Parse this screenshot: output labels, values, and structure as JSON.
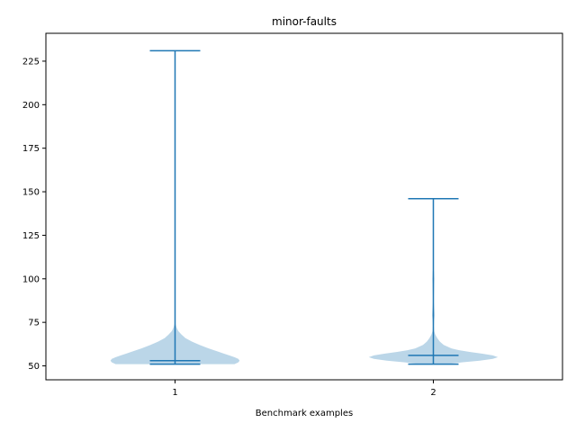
{
  "chart_data": {
    "type": "violin",
    "title": "minor-faults",
    "xlabel": "Benchmark examples",
    "ylabel": "",
    "categories": [
      "1",
      "2"
    ],
    "ylim": [
      42,
      241
    ],
    "xlim": [
      0.5,
      2.5
    ],
    "yticks": [
      50,
      75,
      100,
      125,
      150,
      175,
      200,
      225
    ],
    "grid": false,
    "colors": {
      "body": "#1f77b4",
      "body_opacity": 0.3,
      "lines": "#1f77b4"
    },
    "violins": [
      {
        "category": "1",
        "min": 51,
        "max": 231,
        "median": 53,
        "density": [
          [
            51,
            0.46
          ],
          [
            52,
            0.49
          ],
          [
            53,
            0.5
          ],
          [
            54,
            0.49
          ],
          [
            55,
            0.46
          ],
          [
            56,
            0.42
          ],
          [
            57,
            0.38
          ],
          [
            58,
            0.34
          ],
          [
            60,
            0.26
          ],
          [
            62,
            0.19
          ],
          [
            64,
            0.13
          ],
          [
            66,
            0.08
          ],
          [
            68,
            0.05
          ],
          [
            70,
            0.025
          ],
          [
            72,
            0.012
          ],
          [
            74,
            0.004
          ],
          [
            75,
            0.0
          ]
        ]
      },
      {
        "category": "2",
        "min": 51,
        "max": 146,
        "median": 56,
        "density": [
          [
            51,
            0.1
          ],
          [
            52,
            0.22
          ],
          [
            53,
            0.36
          ],
          [
            54,
            0.46
          ],
          [
            55,
            0.5
          ],
          [
            56,
            0.46
          ],
          [
            57,
            0.38
          ],
          [
            58,
            0.28
          ],
          [
            59,
            0.2
          ],
          [
            60,
            0.14
          ],
          [
            62,
            0.08
          ],
          [
            64,
            0.05
          ],
          [
            66,
            0.03
          ],
          [
            68,
            0.015
          ],
          [
            70,
            0.006
          ],
          [
            73,
            0.004
          ],
          [
            76,
            0.006
          ],
          [
            79,
            0.01
          ],
          [
            82,
            0.008
          ],
          [
            86,
            0.004
          ],
          [
            90,
            0.004
          ],
          [
            95,
            0.006
          ],
          [
            100,
            0.008
          ],
          [
            104,
            0.005
          ],
          [
            107,
            0.0
          ]
        ]
      }
    ]
  }
}
